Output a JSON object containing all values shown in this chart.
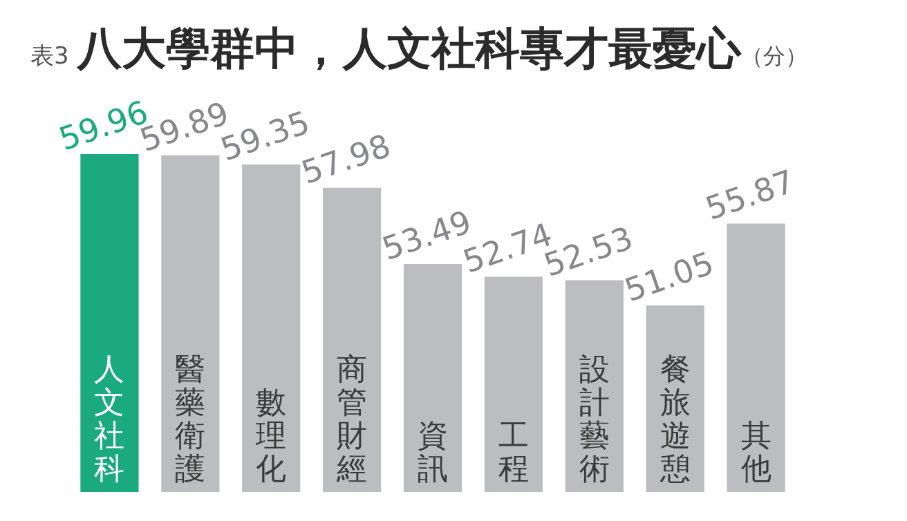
{
  "chart_data": {
    "type": "bar",
    "title": "八大學群中，人文社科專才最憂心",
    "annotations": [
      "表3",
      "（分）"
    ],
    "categories": [
      "人文社科",
      "醫藥衛護",
      "數理化",
      "商管財經",
      "資訊",
      "工程",
      "設計藝術",
      "餐旅遊憩",
      "其他"
    ],
    "values": [
      59.96,
      59.89,
      59.35,
      57.98,
      53.49,
      52.74,
      52.53,
      51.05,
      55.87
    ],
    "colors": [
      "#1aaa7e",
      "#bcbdc1",
      "#bcbdc1",
      "#bcbdc1",
      "#bcbdc1",
      "#bcbdc1",
      "#bcbdc1",
      "#bcbdc1",
      "#bcbdc1"
    ],
    "tick_labels": false,
    "data_labels": true
  }
}
